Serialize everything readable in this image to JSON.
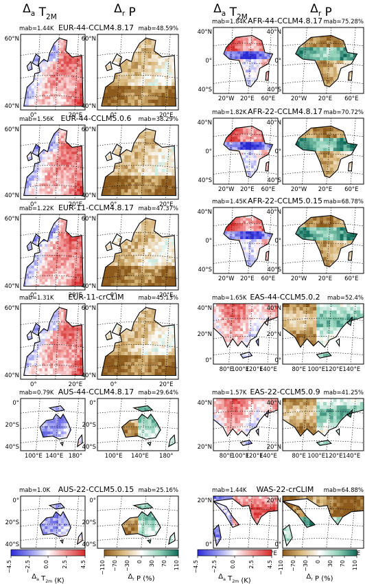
{
  "headers": [
    "Δ_a T_2M",
    "Δ_r P",
    "Δ_a T_2M",
    "Δ_r P"
  ],
  "colors": {
    "temp": [
      "#2b2bd6",
      "#8f8fee",
      "#ffffff",
      "#ef8f8f",
      "#d62b2b"
    ],
    "precip": [
      "#8c5a1c",
      "#d9b87c",
      "#ffffff",
      "#8ed0b8",
      "#0f6b5a"
    ],
    "land": "#f6f6f6"
  },
  "chart_data": {
    "type": "heatmap",
    "panels": [
      {
        "id": "EUR-44-CCLM4.8.17",
        "title": "EUR-44-CCLM4.8.17",
        "t_mab": "mab=1.44K",
        "p_mab": "mab=48.59%",
        "region": "eur",
        "lat_ticks": [
          "60°N",
          "40°N"
        ],
        "lon_ticks": [
          "0°",
          "20°E"
        ]
      },
      {
        "id": "EUR-44-CCLM5.0.6",
        "title": "EUR-44-CCLM5.0.6",
        "t_mab": "mab=1.56K",
        "p_mab": "mab=38.29%",
        "region": "eur",
        "lat_ticks": [
          "60°N",
          "40°N"
        ],
        "lon_ticks": [
          "0°",
          "20°E"
        ]
      },
      {
        "id": "EUR-11-CCLM4.8.17",
        "title": "EUR-11-CCLM4.8.17",
        "t_mab": "mab=1.22K",
        "p_mab": "mab=47.37%",
        "region": "eur",
        "lat_ticks": [
          "60°N",
          "40°N"
        ],
        "lon_ticks": [
          "0°",
          "20°E"
        ]
      },
      {
        "id": "EUR-11-crCLIM",
        "title": "EUR-11-crCLIM",
        "t_mab": "mab=1.31K",
        "p_mab": "mab=45.13%",
        "region": "eur",
        "lat_ticks": [
          "60°N",
          "40°N"
        ],
        "lon_ticks": [
          "0°",
          "20°E"
        ]
      },
      {
        "id": "AUS-44-CCLM4.8.17",
        "title": "AUS-44-CCLM4.8.17",
        "t_mab": "mab=0.79K",
        "p_mab": "mab=29.64%",
        "region": "aus",
        "lat_ticks": [
          "0°",
          "20°S",
          "40°S"
        ],
        "lon_ticks": [
          "100°E",
          "140°E",
          "180°"
        ]
      },
      {
        "id": "AUS-22-CCLM5.0.15",
        "title": "AUS-22-CCLM5.0.15",
        "t_mab": "mab=1.0K",
        "p_mab": "mab=25.16%",
        "region": "aus",
        "lat_ticks": [
          "0°",
          "20°S",
          "40°S"
        ],
        "lon_ticks": [
          "100°E",
          "140°E",
          "180°"
        ]
      },
      {
        "id": "AFR-44-CCLM4.8.17",
        "title": "AFR-44-CCLM4.8.17",
        "t_mab": "mab=1.84K",
        "p_mab": "mab=75.28%",
        "region": "afr",
        "lat_ticks": [
          "40°N",
          "0°",
          "40°S"
        ],
        "lon_ticks": [
          "20°W",
          "20°E",
          "60°E"
        ]
      },
      {
        "id": "AFR-22-CCLM4.8.17",
        "title": "AFR-22-CCLM4.8.17",
        "t_mab": "mab=1.82K",
        "p_mab": "mab=70.72%",
        "region": "afr",
        "lat_ticks": [
          "40°N",
          "0°",
          "40°S"
        ],
        "lon_ticks": [
          "20°W",
          "20°E",
          "60°E"
        ]
      },
      {
        "id": "AFR-22-CCLM5.0.15",
        "title": "AFR-22-CCLM5.0.15",
        "t_mab": "mab=1.45K",
        "p_mab": "mab=68.78%",
        "region": "afr",
        "lat_ticks": [
          "40°N",
          "0°",
          "40°S"
        ],
        "lon_ticks": [
          "20°W",
          "20°E",
          "60°E"
        ]
      },
      {
        "id": "EAS-44-CCLM5.0.2",
        "title": "EAS-44-CCLM5.0.2",
        "t_mab": "mab=1.65K",
        "p_mab": "mab=52.4%",
        "region": "eas",
        "lat_ticks": [
          "40°N",
          "20°N",
          "0°"
        ],
        "lon_ticks": [
          "80°E",
          "100°E",
          "120°E",
          "140°E"
        ]
      },
      {
        "id": "EAS-22-CCLM5.0.9",
        "title": "EAS-22-CCLM5.0.9",
        "t_mab": "mab=1.57K",
        "p_mab": "mab=41.25%",
        "region": "eas",
        "lat_ticks": [
          "40°N",
          "20°N"
        ],
        "lon_ticks": [
          "80°E",
          "100°E",
          "120°E",
          "140°E"
        ]
      },
      {
        "id": "WAS-22-crCLIM",
        "title": "WAS-22-crCLIM",
        "t_mab": "mab=1.44K",
        "p_mab": "mab=64.88%",
        "region": "was",
        "lat_ticks": [
          "20°N",
          "0°"
        ],
        "lon_ticks": [
          "40°E",
          "60°E",
          "80°E",
          "100°E"
        ]
      }
    ],
    "colorbars": [
      {
        "label": "Δ_a T_2m (K)",
        "ticks": [
          "−4.5",
          "−2.5",
          "0.0",
          "2.5",
          "4.5"
        ],
        "range": [
          -4.5,
          4.5
        ],
        "scale": "temp"
      },
      {
        "label": "Δ_r P (%)",
        "ticks": [
          "−110",
          "−70",
          "−30",
          "0",
          "30",
          "70",
          "110"
        ],
        "range": [
          -110,
          110
        ],
        "scale": "precip"
      },
      {
        "label": "Δ_a T_2m (K)",
        "ticks": [
          "−4.5",
          "−2.5",
          "0.0",
          "2.5",
          "4.5"
        ],
        "range": [
          -4.5,
          4.5
        ],
        "scale": "temp"
      },
      {
        "label": "Δ_r P (%)",
        "ticks": [
          "−110",
          "−70",
          "−30",
          "0",
          "30",
          "70",
          "110"
        ],
        "range": [
          -110,
          110
        ],
        "scale": "precip"
      }
    ]
  }
}
